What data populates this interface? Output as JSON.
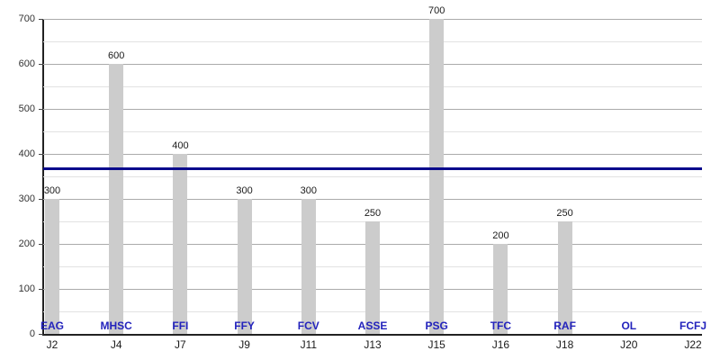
{
  "chart_data": {
    "type": "bar",
    "title": "",
    "xlabel": "",
    "ylabel": "",
    "categories": [
      "J2",
      "J4",
      "J7",
      "J9",
      "J11",
      "J13",
      "J15",
      "J16",
      "J18",
      "J20",
      "J22"
    ],
    "bar_labels": [
      "EAG",
      "MHSC",
      "FFI",
      "FFY",
      "FCV",
      "ASSE",
      "PSG",
      "TFC",
      "RAF",
      "OL",
      "FCFJ"
    ],
    "values": [
      300,
      600,
      400,
      300,
      300,
      250,
      700,
      200,
      250,
      null,
      null
    ],
    "value_labels": [
      "300",
      "600",
      "400",
      "300",
      "300",
      "250",
      "700",
      "200",
      "250",
      "",
      ""
    ],
    "ylim": [
      0,
      700
    ],
    "y_major_step": 100,
    "y_minor_step": 50,
    "y_tick_labels": [
      "0",
      "100",
      "200",
      "300",
      "400",
      "500",
      "600",
      "700"
    ],
    "grid": "horizontal",
    "legend": "none",
    "reference_line": {
      "value": 366.7,
      "color": "#0A0A8C"
    },
    "colors": {
      "bar": "#CCCCCC",
      "category_label": "#2323BC",
      "value_label": "#1A1A1A",
      "axis": "#222222",
      "grid_major": "#ABABAB",
      "grid_minor": "#E2E2E2",
      "background": "#FFFFFF"
    }
  }
}
